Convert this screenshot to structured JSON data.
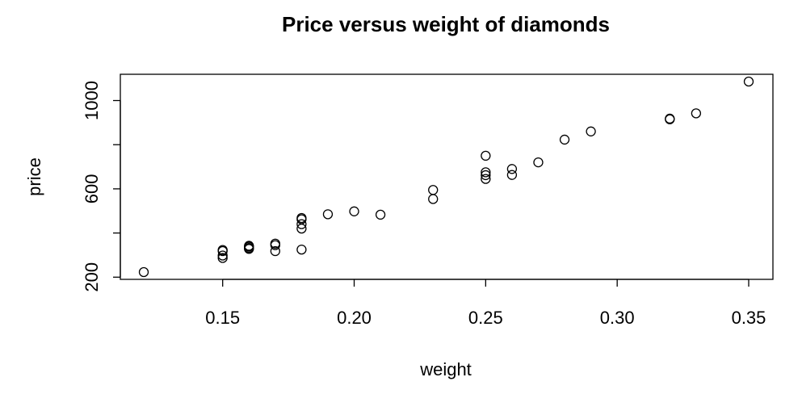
{
  "chart_data": {
    "type": "scatter",
    "title": "Price versus weight of diamonds",
    "xlabel": "weight",
    "ylabel": "price",
    "xlim": [
      0.12,
      0.35
    ],
    "ylim": [
      223,
      1086
    ],
    "xticks": [
      0.15,
      0.2,
      0.25,
      0.3,
      0.35
    ],
    "xtick_labels": [
      "0.15",
      "0.20",
      "0.25",
      "0.30",
      "0.35"
    ],
    "yticks": [
      200,
      400,
      600,
      800,
      1000
    ],
    "ytick_labels": [
      "200",
      "",
      "600",
      "",
      "1000"
    ],
    "grid": false,
    "points": [
      {
        "x": 0.12,
        "y": 223
      },
      {
        "x": 0.15,
        "y": 287
      },
      {
        "x": 0.15,
        "y": 298
      },
      {
        "x": 0.15,
        "y": 318
      },
      {
        "x": 0.15,
        "y": 323
      },
      {
        "x": 0.16,
        "y": 328
      },
      {
        "x": 0.16,
        "y": 332
      },
      {
        "x": 0.16,
        "y": 338
      },
      {
        "x": 0.16,
        "y": 342
      },
      {
        "x": 0.17,
        "y": 318
      },
      {
        "x": 0.17,
        "y": 345
      },
      {
        "x": 0.17,
        "y": 352
      },
      {
        "x": 0.18,
        "y": 325
      },
      {
        "x": 0.18,
        "y": 420
      },
      {
        "x": 0.18,
        "y": 440
      },
      {
        "x": 0.18,
        "y": 462
      },
      {
        "x": 0.18,
        "y": 468
      },
      {
        "x": 0.19,
        "y": 485
      },
      {
        "x": 0.2,
        "y": 498
      },
      {
        "x": 0.21,
        "y": 483
      },
      {
        "x": 0.23,
        "y": 554
      },
      {
        "x": 0.23,
        "y": 595
      },
      {
        "x": 0.25,
        "y": 645
      },
      {
        "x": 0.25,
        "y": 662
      },
      {
        "x": 0.25,
        "y": 675
      },
      {
        "x": 0.25,
        "y": 750
      },
      {
        "x": 0.26,
        "y": 663
      },
      {
        "x": 0.26,
        "y": 690
      },
      {
        "x": 0.27,
        "y": 720
      },
      {
        "x": 0.28,
        "y": 823
      },
      {
        "x": 0.29,
        "y": 860
      },
      {
        "x": 0.32,
        "y": 915
      },
      {
        "x": 0.32,
        "y": 918
      },
      {
        "x": 0.33,
        "y": 942
      },
      {
        "x": 0.35,
        "y": 1086
      }
    ]
  }
}
